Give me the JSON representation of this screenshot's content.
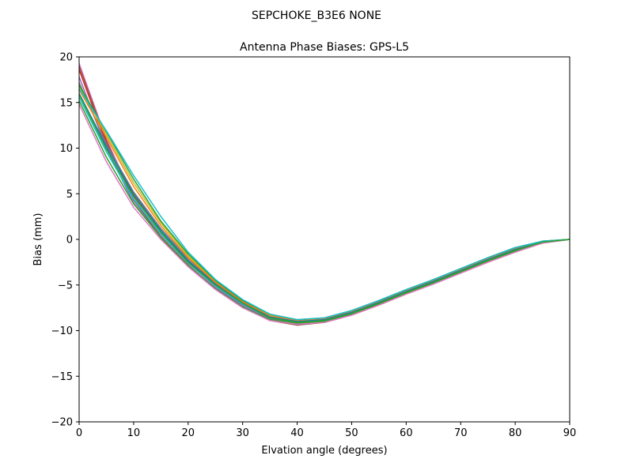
{
  "figure": {
    "suptitle": "SEPCHOKE_B3E6   NONE"
  },
  "chart_data": {
    "type": "line",
    "title": "Antenna Phase Biases: GPS-L5",
    "xlabel": "Elvation angle (degrees)",
    "ylabel": "Bias (mm)",
    "xlim": [
      0,
      90
    ],
    "ylim": [
      -20,
      20
    ],
    "xticks": [
      0,
      10,
      20,
      30,
      40,
      50,
      60,
      70,
      80,
      90
    ],
    "yticks": [
      -20,
      -15,
      -10,
      -5,
      0,
      5,
      10,
      15,
      20
    ],
    "grid": false,
    "legend": "none",
    "x": [
      0,
      5,
      10,
      15,
      20,
      25,
      30,
      35,
      40,
      45,
      50,
      55,
      60,
      65,
      70,
      75,
      80,
      85,
      90
    ],
    "series": [
      {
        "color": "#e377c2",
        "values": [
          19.3,
          11.0,
          4.5,
          0.5,
          -2.6,
          -5.2,
          -7.3,
          -8.8,
          -9.3,
          -9.0,
          -8.2,
          -7.1,
          -5.9,
          -4.8,
          -3.6,
          -2.4,
          -1.3,
          -0.4,
          0.0
        ]
      },
      {
        "color": "#8c564b",
        "values": [
          19.0,
          10.8,
          4.3,
          0.3,
          -2.8,
          -5.4,
          -7.4,
          -8.9,
          -9.4,
          -9.1,
          -8.3,
          -7.2,
          -6.0,
          -4.9,
          -3.7,
          -2.5,
          -1.4,
          -0.4,
          0.0
        ]
      },
      {
        "color": "#d62728",
        "values": [
          18.6,
          10.5,
          4.8,
          0.8,
          -2.4,
          -5.0,
          -7.1,
          -8.6,
          -9.1,
          -8.9,
          -8.1,
          -7.0,
          -5.8,
          -4.7,
          -3.5,
          -2.3,
          -1.2,
          -0.3,
          0.0
        ]
      },
      {
        "color": "#9467bd",
        "values": [
          17.8,
          10.0,
          4.0,
          0.2,
          -2.9,
          -5.3,
          -7.2,
          -8.7,
          -9.2,
          -9.0,
          -8.2,
          -7.1,
          -5.9,
          -4.8,
          -3.6,
          -2.4,
          -1.3,
          -0.4,
          0.0
        ]
      },
      {
        "color": "#7f7f7f",
        "values": [
          17.2,
          10.4,
          5.2,
          1.2,
          -2.1,
          -4.8,
          -6.9,
          -8.4,
          -9.0,
          -8.8,
          -8.0,
          -6.9,
          -5.7,
          -4.6,
          -3.4,
          -2.2,
          -1.1,
          -0.3,
          0.0
        ]
      },
      {
        "color": "#bcbd22",
        "values": [
          16.8,
          11.5,
          6.2,
          1.8,
          -1.8,
          -4.6,
          -6.8,
          -8.3,
          -8.9,
          -8.7,
          -7.9,
          -6.8,
          -5.6,
          -4.5,
          -3.3,
          -2.1,
          -1.0,
          -0.2,
          0.0
        ]
      },
      {
        "color": "#ff7f0e",
        "values": [
          16.4,
          11.2,
          5.8,
          1.5,
          -2.0,
          -4.7,
          -6.8,
          -8.4,
          -8.9,
          -8.7,
          -7.9,
          -6.8,
          -5.6,
          -4.5,
          -3.3,
          -2.1,
          -1.0,
          -0.2,
          0.0
        ]
      },
      {
        "color": "#1f77b4",
        "values": [
          16.0,
          10.2,
          5.0,
          1.0,
          -2.3,
          -4.9,
          -7.0,
          -8.5,
          -9.0,
          -8.8,
          -8.0,
          -6.9,
          -5.7,
          -4.6,
          -3.4,
          -2.2,
          -1.1,
          -0.3,
          0.0
        ]
      },
      {
        "color": "#17becf",
        "values": [
          15.6,
          9.6,
          4.4,
          0.6,
          -2.6,
          -5.1,
          -7.1,
          -8.6,
          -9.1,
          -8.9,
          -8.1,
          -7.0,
          -5.8,
          -4.7,
          -3.5,
          -2.3,
          -1.2,
          -0.3,
          0.0
        ]
      },
      {
        "color": "#2ca02c",
        "values": [
          15.2,
          9.0,
          3.9,
          0.2,
          -2.9,
          -5.4,
          -7.4,
          -8.8,
          -9.2,
          -9.0,
          -8.2,
          -7.1,
          -5.9,
          -4.8,
          -3.6,
          -2.4,
          -1.3,
          -0.4,
          0.0
        ]
      },
      {
        "color": "#e377c2",
        "values": [
          14.8,
          8.5,
          3.5,
          0.0,
          -3.0,
          -5.5,
          -7.5,
          -8.9,
          -9.3,
          -9.1,
          -8.3,
          -7.2,
          -6.0,
          -4.9,
          -3.7,
          -2.5,
          -1.4,
          -0.4,
          0.0
        ]
      },
      {
        "color": "#2ca02c",
        "values": [
          16.9,
          11.8,
          6.6,
          2.0,
          -1.6,
          -4.5,
          -6.7,
          -8.2,
          -8.8,
          -8.6,
          -7.8,
          -6.7,
          -5.5,
          -4.4,
          -3.2,
          -2.0,
          -0.9,
          -0.2,
          0.0
        ]
      },
      {
        "color": "#17becf",
        "values": [
          16.5,
          11.9,
          7.0,
          2.5,
          -1.4,
          -4.4,
          -6.6,
          -8.2,
          -8.8,
          -8.6,
          -7.8,
          -6.7,
          -5.5,
          -4.4,
          -3.2,
          -2.0,
          -0.9,
          -0.2,
          0.0
        ]
      },
      {
        "color": "#2ca02c",
        "values": [
          15.9,
          9.9,
          4.7,
          0.8,
          -2.5,
          -5.0,
          -7.0,
          -8.6,
          -9.1,
          -8.9,
          -8.1,
          -7.0,
          -5.8,
          -4.7,
          -3.5,
          -2.3,
          -1.2,
          -0.3,
          0.0
        ]
      }
    ]
  }
}
